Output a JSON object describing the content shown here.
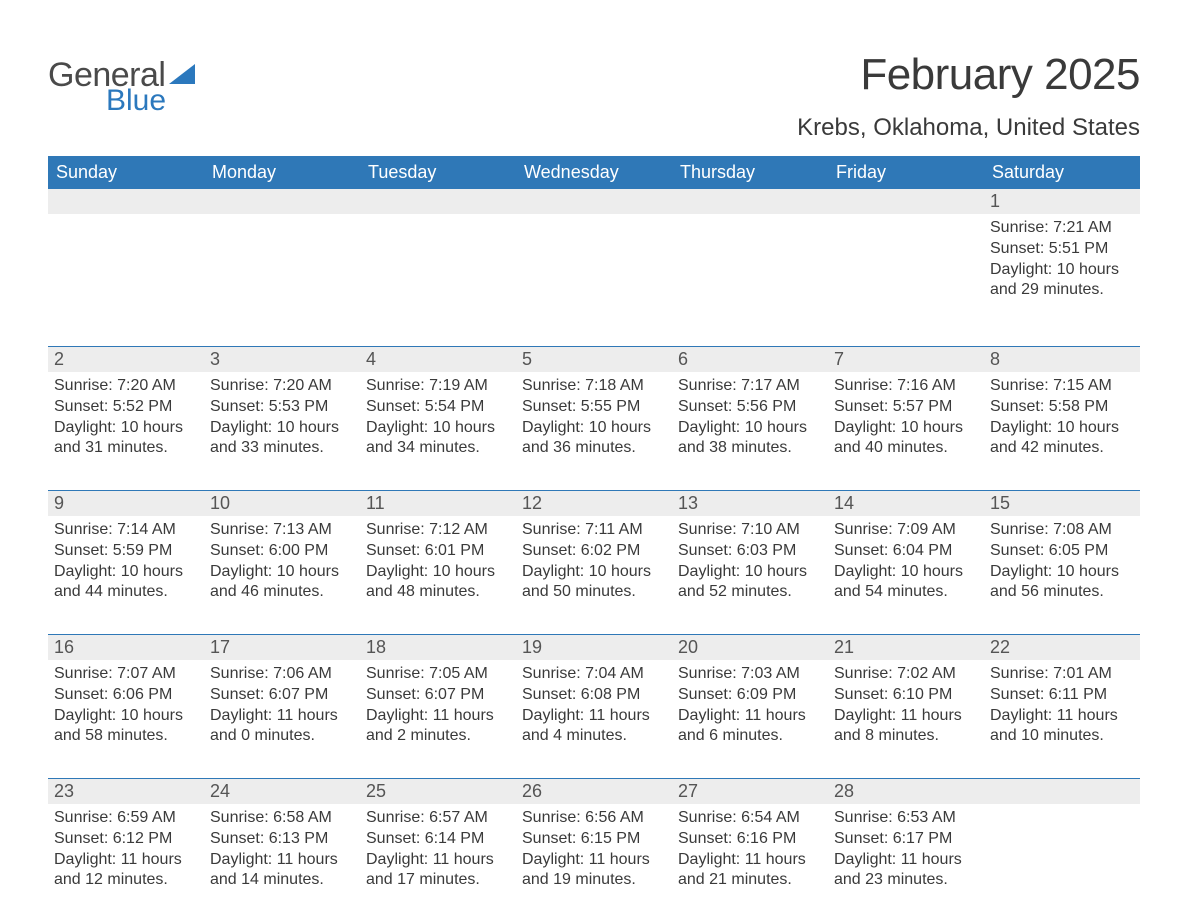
{
  "brand": {
    "word1": "General",
    "word2": "Blue",
    "text_color": "#4a4a4a",
    "accent_color": "#2b78bd"
  },
  "title": "February 2025",
  "location": "Krebs, Oklahoma, United States",
  "theme": {
    "header_bg": "#2f78b7",
    "header_text": "#ffffff",
    "row_stripe": "#ededed",
    "row_border": "#2f78b7",
    "body_text": "#3a3a3a",
    "page_bg": "#ffffff"
  },
  "weekdays": [
    "Sunday",
    "Monday",
    "Tuesday",
    "Wednesday",
    "Thursday",
    "Friday",
    "Saturday"
  ],
  "weeks": [
    {
      "nums": [
        "",
        "",
        "",
        "",
        "",
        "",
        "1"
      ],
      "cells": [
        "",
        "",
        "",
        "",
        "",
        "",
        "Sunrise: 7:21 AM\nSunset: 5:51 PM\nDaylight: 10 hours and 29 minutes."
      ]
    },
    {
      "nums": [
        "2",
        "3",
        "4",
        "5",
        "6",
        "7",
        "8"
      ],
      "cells": [
        "Sunrise: 7:20 AM\nSunset: 5:52 PM\nDaylight: 10 hours and 31 minutes.",
        "Sunrise: 7:20 AM\nSunset: 5:53 PM\nDaylight: 10 hours and 33 minutes.",
        "Sunrise: 7:19 AM\nSunset: 5:54 PM\nDaylight: 10 hours and 34 minutes.",
        "Sunrise: 7:18 AM\nSunset: 5:55 PM\nDaylight: 10 hours and 36 minutes.",
        "Sunrise: 7:17 AM\nSunset: 5:56 PM\nDaylight: 10 hours and 38 minutes.",
        "Sunrise: 7:16 AM\nSunset: 5:57 PM\nDaylight: 10 hours and 40 minutes.",
        "Sunrise: 7:15 AM\nSunset: 5:58 PM\nDaylight: 10 hours and 42 minutes."
      ]
    },
    {
      "nums": [
        "9",
        "10",
        "11",
        "12",
        "13",
        "14",
        "15"
      ],
      "cells": [
        "Sunrise: 7:14 AM\nSunset: 5:59 PM\nDaylight: 10 hours and 44 minutes.",
        "Sunrise: 7:13 AM\nSunset: 6:00 PM\nDaylight: 10 hours and 46 minutes.",
        "Sunrise: 7:12 AM\nSunset: 6:01 PM\nDaylight: 10 hours and 48 minutes.",
        "Sunrise: 7:11 AM\nSunset: 6:02 PM\nDaylight: 10 hours and 50 minutes.",
        "Sunrise: 7:10 AM\nSunset: 6:03 PM\nDaylight: 10 hours and 52 minutes.",
        "Sunrise: 7:09 AM\nSunset: 6:04 PM\nDaylight: 10 hours and 54 minutes.",
        "Sunrise: 7:08 AM\nSunset: 6:05 PM\nDaylight: 10 hours and 56 minutes."
      ]
    },
    {
      "nums": [
        "16",
        "17",
        "18",
        "19",
        "20",
        "21",
        "22"
      ],
      "cells": [
        "Sunrise: 7:07 AM\nSunset: 6:06 PM\nDaylight: 10 hours and 58 minutes.",
        "Sunrise: 7:06 AM\nSunset: 6:07 PM\nDaylight: 11 hours and 0 minutes.",
        "Sunrise: 7:05 AM\nSunset: 6:07 PM\nDaylight: 11 hours and 2 minutes.",
        "Sunrise: 7:04 AM\nSunset: 6:08 PM\nDaylight: 11 hours and 4 minutes.",
        "Sunrise: 7:03 AM\nSunset: 6:09 PM\nDaylight: 11 hours and 6 minutes.",
        "Sunrise: 7:02 AM\nSunset: 6:10 PM\nDaylight: 11 hours and 8 minutes.",
        "Sunrise: 7:01 AM\nSunset: 6:11 PM\nDaylight: 11 hours and 10 minutes."
      ]
    },
    {
      "nums": [
        "23",
        "24",
        "25",
        "26",
        "27",
        "28",
        ""
      ],
      "cells": [
        "Sunrise: 6:59 AM\nSunset: 6:12 PM\nDaylight: 11 hours and 12 minutes.",
        "Sunrise: 6:58 AM\nSunset: 6:13 PM\nDaylight: 11 hours and 14 minutes.",
        "Sunrise: 6:57 AM\nSunset: 6:14 PM\nDaylight: 11 hours and 17 minutes.",
        "Sunrise: 6:56 AM\nSunset: 6:15 PM\nDaylight: 11 hours and 19 minutes.",
        "Sunrise: 6:54 AM\nSunset: 6:16 PM\nDaylight: 11 hours and 21 minutes.",
        "Sunrise: 6:53 AM\nSunset: 6:17 PM\nDaylight: 11 hours and 23 minutes.",
        ""
      ]
    }
  ]
}
